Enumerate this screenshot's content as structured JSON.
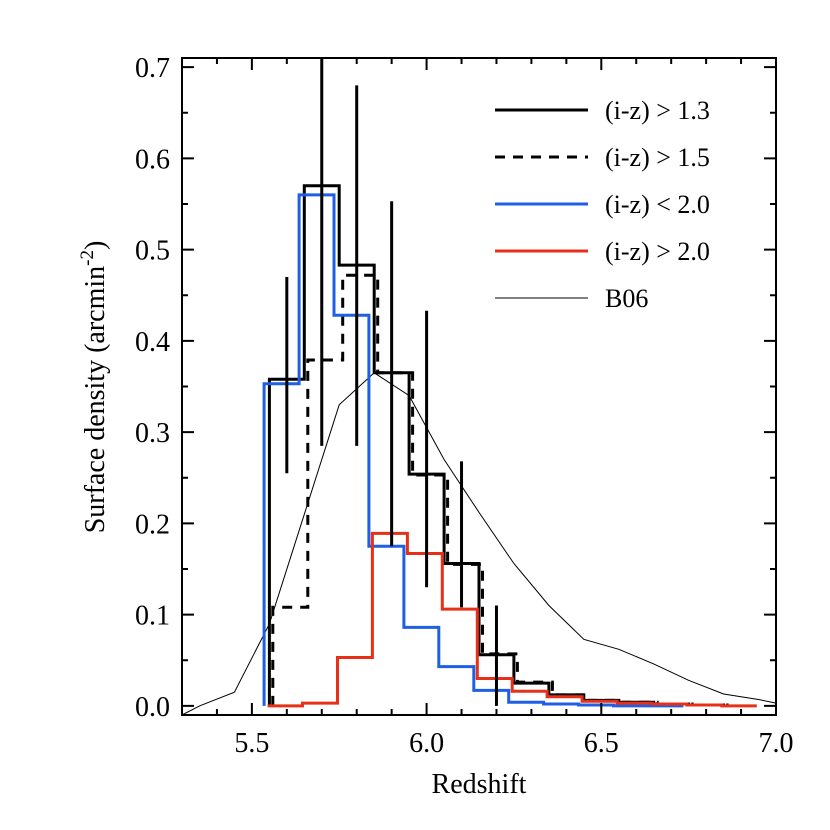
{
  "chart_data": {
    "type": "line",
    "xlabel": "Redshift",
    "ylabel": "Surface density (arcmin",
    "ylabel_sup": "-2",
    "ylabel_close": ")",
    "xlim": [
      5.3,
      7.0
    ],
    "ylim": [
      -0.01,
      0.71
    ],
    "xticks": [
      5.5,
      6.0,
      6.5,
      7.0
    ],
    "xtick_labels": [
      "5.5",
      "6.0",
      "6.5",
      "7.0"
    ],
    "yticks": [
      0.0,
      0.1,
      0.2,
      0.3,
      0.4,
      0.5,
      0.6,
      0.7
    ],
    "ytick_labels": [
      "0.0",
      "0.1",
      "0.2",
      "0.3",
      "0.4",
      "0.5",
      "0.6",
      "0.7"
    ],
    "grid": false,
    "legend_position": "top-right",
    "series": [
      {
        "name": "(i-z) > 1.3",
        "style": "step",
        "color": "#000000",
        "dash": "",
        "width": 3,
        "x": [
          5.55,
          5.55,
          5.65,
          5.65,
          5.75,
          5.75,
          5.85,
          5.85,
          5.95,
          5.95,
          6.05,
          6.05,
          6.15,
          6.15,
          6.25,
          6.25,
          6.35,
          6.35,
          6.45,
          6.45,
          6.55,
          6.55,
          6.65,
          6.65,
          6.75,
          6.75,
          6.85,
          6.85
        ],
        "y": [
          0.0,
          0.358,
          0.358,
          0.57,
          0.57,
          0.483,
          0.483,
          0.365,
          0.365,
          0.254,
          0.254,
          0.156,
          0.156,
          0.056,
          0.056,
          0.025,
          0.025,
          0.012,
          0.012,
          0.006,
          0.006,
          0.004,
          0.004,
          0.002,
          0.002,
          0.001,
          0.001,
          0.0
        ]
      },
      {
        "name": "(i-z) > 1.5",
        "style": "step",
        "color": "#000000",
        "dash": "10,8",
        "width": 3,
        "x": [
          5.56,
          5.56,
          5.66,
          5.66,
          5.76,
          5.76,
          5.86,
          5.86,
          5.96,
          5.96,
          6.06,
          6.06,
          6.16,
          6.16,
          6.26,
          6.26,
          6.36,
          6.36,
          6.46,
          6.46,
          6.56,
          6.56,
          6.66,
          6.66,
          6.76,
          6.76,
          6.86,
          6.86
        ],
        "y": [
          0.0,
          0.108,
          0.108,
          0.379,
          0.379,
          0.472,
          0.472,
          0.365,
          0.365,
          0.253,
          0.253,
          0.155,
          0.155,
          0.057,
          0.057,
          0.026,
          0.026,
          0.012,
          0.012,
          0.006,
          0.006,
          0.004,
          0.004,
          0.002,
          0.002,
          0.001,
          0.001,
          0.0
        ]
      },
      {
        "name": "(i-z) < 2.0",
        "style": "step",
        "color": "#1f5fe6",
        "dash": "",
        "width": 3,
        "x": [
          5.535,
          5.535,
          5.635,
          5.635,
          5.735,
          5.735,
          5.835,
          5.835,
          5.935,
          5.935,
          6.035,
          6.035,
          6.135,
          6.135,
          6.235,
          6.235,
          6.335,
          6.335,
          6.435,
          6.435,
          6.535,
          6.535,
          6.635,
          6.635,
          6.735,
          6.735
        ],
        "y": [
          0.0,
          0.353,
          0.353,
          0.56,
          0.56,
          0.428,
          0.428,
          0.175,
          0.175,
          0.086,
          0.086,
          0.043,
          0.043,
          0.017,
          0.017,
          0.004,
          0.004,
          0.002,
          0.002,
          0.001,
          0.001,
          0.0,
          0.0,
          0.0,
          0.0,
          0.0
        ]
      },
      {
        "name": "(i-z) > 2.0",
        "style": "step",
        "color": "#e83018",
        "dash": "",
        "width": 3,
        "x": [
          5.545,
          5.645,
          5.645,
          5.745,
          5.745,
          5.845,
          5.845,
          5.945,
          5.945,
          6.045,
          6.045,
          6.145,
          6.145,
          6.245,
          6.245,
          6.345,
          6.345,
          6.445,
          6.445,
          6.545,
          6.545,
          6.645,
          6.645,
          6.745,
          6.745,
          6.845,
          6.845,
          6.945
        ],
        "y": [
          0.0,
          0.0,
          0.003,
          0.003,
          0.053,
          0.053,
          0.189,
          0.189,
          0.167,
          0.167,
          0.106,
          0.106,
          0.03,
          0.03,
          0.016,
          0.016,
          0.01,
          0.01,
          0.005,
          0.005,
          0.003,
          0.003,
          0.002,
          0.002,
          0.001,
          0.001,
          0.0,
          0.0
        ]
      },
      {
        "name": "B06",
        "style": "line",
        "color": "#000000",
        "dash": "",
        "width": 1,
        "x": [
          5.3,
          5.35,
          5.45,
          5.55,
          5.65,
          5.75,
          5.85,
          5.95,
          6.05,
          6.15,
          6.25,
          6.35,
          6.45,
          6.55,
          6.65,
          6.75,
          6.85,
          6.95,
          7.0
        ],
        "y": [
          -0.01,
          0.0,
          0.015,
          0.09,
          0.21,
          0.33,
          0.365,
          0.34,
          0.27,
          0.212,
          0.156,
          0.11,
          0.073,
          0.062,
          0.046,
          0.028,
          0.013,
          0.007,
          0.003
        ]
      }
    ],
    "error_bars": [
      {
        "series": "(i-z) > 1.3",
        "x": 5.6,
        "low": 0.255,
        "high": 0.47
      },
      {
        "series": "(i-z) > 1.3",
        "x": 5.7,
        "low": 0.285,
        "high": 0.71
      },
      {
        "series": "(i-z) > 1.3",
        "x": 5.8,
        "low": 0.285,
        "high": 0.68
      },
      {
        "series": "(i-z) > 1.3",
        "x": 5.9,
        "low": 0.175,
        "high": 0.553
      },
      {
        "series": "(i-z) > 1.3",
        "x": 6.0,
        "low": 0.13,
        "high": 0.433
      },
      {
        "series": "(i-z) > 1.3",
        "x": 6.1,
        "low": 0.108,
        "high": 0.268
      },
      {
        "series": "(i-z) > 1.3",
        "x": 6.2,
        "low": 0.0,
        "high": 0.11
      }
    ]
  }
}
